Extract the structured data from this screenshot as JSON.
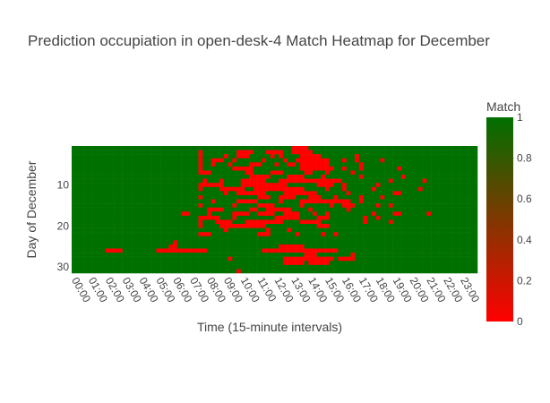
{
  "chart_data": {
    "type": "heatmap",
    "title": "Prediction occupiation in open-desk-4 Match Heatmap for December",
    "xlabel": "Time (15-minute intervals)",
    "ylabel": "Day of December",
    "x_tick_labels": [
      "00:00",
      "01:00",
      "02:00",
      "03:00",
      "04:00",
      "05:00",
      "06:00",
      "07:00",
      "08:00",
      "09:00",
      "10:00",
      "11:00",
      "12:00",
      "13:00",
      "14:00",
      "15:00",
      "16:00",
      "17:00",
      "18:00",
      "19:00",
      "20:00",
      "21:00",
      "22:00",
      "23:00"
    ],
    "y_ticks": [
      10,
      20,
      30
    ],
    "x_range": [
      "00:00",
      "23:45"
    ],
    "y_range": [
      1,
      31
    ],
    "colorbar": {
      "title": "Match",
      "min": 0,
      "max": 1,
      "ticks": [
        "0",
        "0.2",
        "0.4",
        "0.6",
        "0.8",
        "1"
      ],
      "color_min": "#ff0000",
      "color_max": "#007000"
    },
    "default_value": 1,
    "zero_cells_by_day": {
      "1": [
        "13:00-13:45"
      ],
      "2": [
        "07:30",
        "09:45-10:30",
        "11:30-12:15",
        "13:00-14:00"
      ],
      "3": [
        "07:30",
        "09:00",
        "09:45-10:15",
        "11:45",
        "12:15",
        "13:30-14:30",
        "16:45"
      ],
      "4": [
        "07:30",
        "08:15-08:45",
        "09:30",
        "11:15",
        "12:30",
        "13:15-15:00",
        "16:00",
        "16:45",
        "18:15"
      ],
      "5": [
        "07:30",
        "08:15",
        "09:15",
        "10:30-11:00",
        "12:00",
        "12:45-13:00",
        "13:30-15:00",
        "17:00"
      ],
      "6": [
        "07:30",
        "09:30-10:30",
        "13:30-15:15",
        "16:00",
        "17:00",
        "19:15"
      ],
      "7": [
        "07:30-08:00",
        "10:15-10:30",
        "11:45-12:15",
        "13:45-14:00",
        "15:00",
        "16:30"
      ],
      "8": [
        "10:30-11:30",
        "12:45-13:30",
        "14:45",
        "17:00",
        "19:30"
      ],
      "9": [
        "07:45",
        "08:45",
        "10:00-11:15",
        "12:15-15:45",
        "18:45",
        "20:45"
      ],
      "10": [
        "07:30-08:45",
        "10:00-12:30",
        "14:30-15:15",
        "16:00",
        "18:00"
      ],
      "11": [
        "07:30",
        "08:45-10:00",
        "10:45-13:30",
        "15:00",
        "16:00",
        "17:45",
        "20:30"
      ],
      "12": [
        "09:00",
        "09:45-11:15",
        "12:30-14:15",
        "16:15",
        "19:00-19:15"
      ],
      "13": [
        "07:30",
        "11:00-11:30",
        "12:15-13:00",
        "14:00-14:30",
        "15:30",
        "17:00",
        "18:15"
      ],
      "14": [
        "08:15",
        "09:45-10:45",
        "12:15",
        "13:30-16:15",
        "17:00"
      ],
      "15": [
        "07:30",
        "09:30",
        "11:00-11:45",
        "13:30",
        "15:15",
        "16:00-16:30",
        "18:00",
        "18:45"
      ],
      "16": [
        "08:00-08:45",
        "10:30-10:45",
        "11:30-12:45",
        "14:00",
        "16:15"
      ],
      "17": [
        "06:30-06:45",
        "08:00",
        "09:30-10:15",
        "11:00-11:45",
        "12:30-13:15",
        "14:15",
        "15:00",
        "17:45",
        "19:00-19:15",
        "21:00"
      ],
      "18": [
        "07:30-08:30",
        "09:30",
        "12:00-13:15",
        "14:30-15:00",
        "17:15",
        "18:00"
      ],
      "19": [
        "07:30",
        "08:30-09:15",
        "10:15-12:15",
        "13:30-14:30",
        "17:15",
        "18:45"
      ],
      "20": [
        "07:30",
        "08:45-11:15",
        "14:30-15:00"
      ],
      "21": [
        "09:00",
        "11:30",
        "12:45"
      ],
      "22": [
        "07:30-08:00",
        "11:00-11:30",
        "13:15",
        "14:45",
        "15:30"
      ],
      "24": [
        "06:00"
      ],
      "25": [
        "05:45-06:00",
        "12:15-13:30"
      ],
      "26": [
        "02:00-02:45",
        "05:00-07:45",
        "11:15-15:30"
      ],
      "27": [
        "13:45-14:15",
        "16:30"
      ],
      "28": [
        "09:15",
        "12:30-15:15",
        "15:45-16:30"
      ],
      "29": [
        "12:30-13:30",
        "14:00-15:00"
      ],
      "31": [
        "09:45"
      ]
    }
  }
}
